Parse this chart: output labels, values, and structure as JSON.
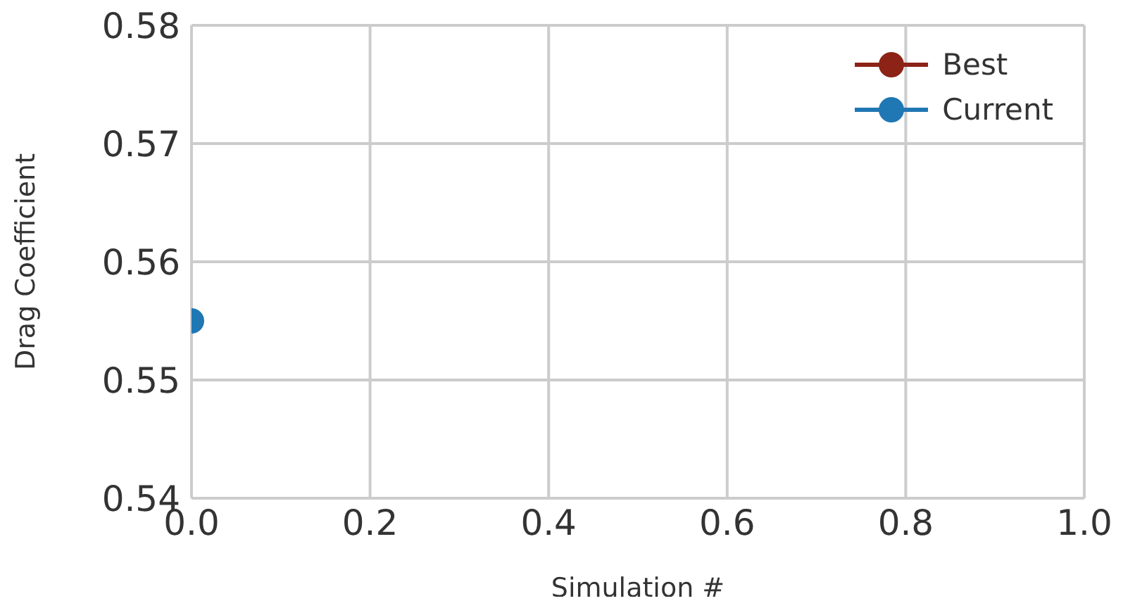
{
  "chart_data": {
    "type": "line",
    "xlabel": "Simulation #",
    "ylabel": "Drag Coefficient",
    "x": [
      0
    ],
    "series": [
      {
        "name": "Best",
        "color": "#8c2316",
        "values": [
          null
        ]
      },
      {
        "name": "Current",
        "color": "#1f77b4",
        "values": [
          0.555
        ]
      }
    ],
    "xlim": [
      0,
      1
    ],
    "xticks": [
      {
        "value": 0,
        "label": "0.0"
      },
      0.2,
      0.4,
      0.6,
      0.8,
      {
        "value": 1,
        "label": "1.0"
      }
    ],
    "ylim": [
      0.54,
      0.58
    ],
    "yticks": [
      0.54,
      0.55,
      0.56,
      0.57,
      0.58
    ],
    "grid": true,
    "legend": "top right",
    "marker": "circle",
    "line_style": "solid"
  }
}
